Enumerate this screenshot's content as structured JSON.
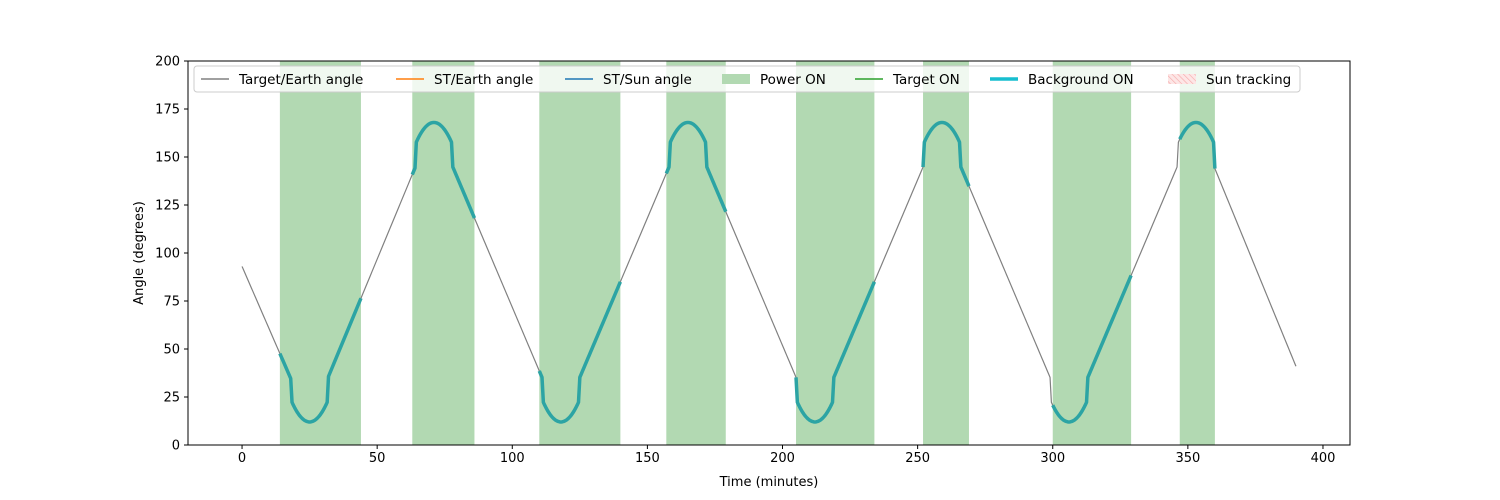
{
  "chart_data": {
    "type": "line",
    "title": "",
    "xlabel": "Time (minutes)",
    "ylabel": "Angle (degrees)",
    "xlim": [
      -20,
      410
    ],
    "ylim": [
      0,
      200
    ],
    "x_ticks": [
      0,
      50,
      100,
      150,
      200,
      250,
      300,
      350,
      400
    ],
    "y_ticks": [
      0,
      25,
      50,
      75,
      100,
      125,
      150,
      175,
      200
    ],
    "grid": false,
    "legend_placement": "top",
    "legend": [
      {
        "label": "Target/Earth angle",
        "kind": "line",
        "color": "#808080"
      },
      {
        "label": "ST/Earth angle",
        "kind": "line",
        "color": "#ff7f0e"
      },
      {
        "label": "ST/Sun angle",
        "kind": "line",
        "color": "#1f77b4"
      },
      {
        "label": "Power ON",
        "kind": "patch",
        "color": "#b2d9b2"
      },
      {
        "label": "Target ON",
        "kind": "line",
        "color": "#2ca02c"
      },
      {
        "label": "Background ON",
        "kind": "thickline",
        "color": "#17becf"
      },
      {
        "label": "Sun tracking",
        "kind": "hatch",
        "color": "#f4a6a6"
      }
    ],
    "target_earth_angle": {
      "color": "#808080",
      "x": [
        0,
        25,
        71,
        118,
        165,
        212,
        259,
        306,
        353,
        390
      ],
      "y": [
        93,
        12,
        168,
        12,
        168,
        12,
        168,
        12,
        168,
        41
      ]
    },
    "power_on_intervals": [
      [
        14,
        44
      ],
      [
        63,
        86
      ],
      [
        110,
        140
      ],
      [
        157,
        179
      ],
      [
        205,
        234
      ],
      [
        252,
        269
      ],
      [
        300,
        329
      ],
      [
        347,
        360
      ]
    ],
    "background_on_color": "#2ca4a4"
  }
}
